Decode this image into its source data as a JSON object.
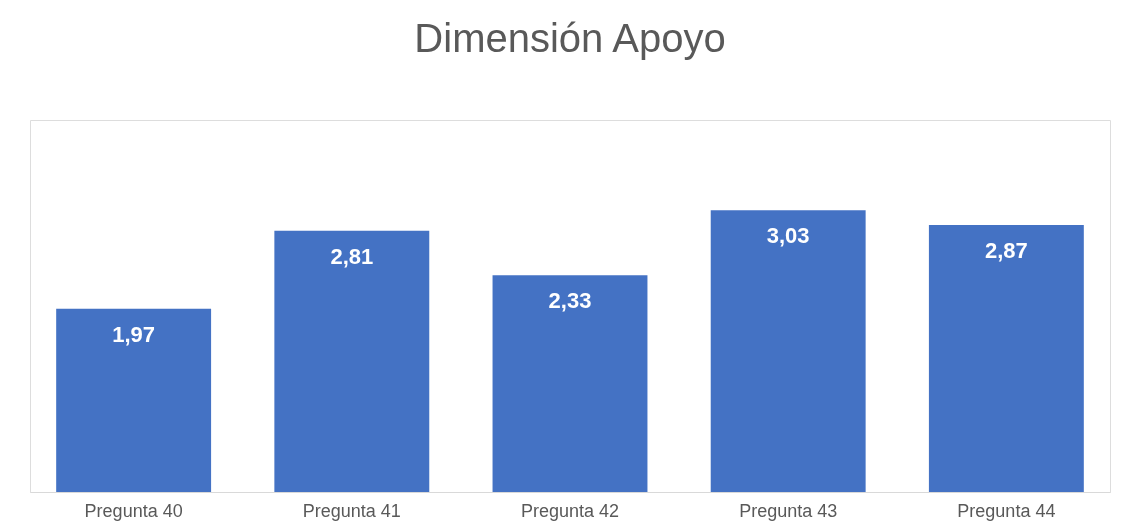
{
  "chart_data": {
    "type": "bar",
    "title": "Dimensión Apoyo",
    "categories": [
      "Pregunta 40",
      "Pregunta 41",
      "Pregunta 42",
      "Pregunta 43",
      "Pregunta 44"
    ],
    "values": [
      1.97,
      2.81,
      2.33,
      3.03,
      2.87
    ],
    "value_labels": [
      "1,97",
      "2,81",
      "2,33",
      "3,03",
      "2,87"
    ],
    "color": "#4472c4"
  }
}
